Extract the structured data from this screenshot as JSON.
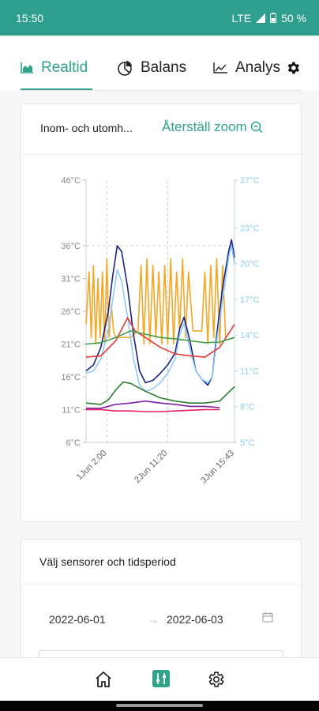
{
  "status_bar": {
    "time": "15:50",
    "network": "LTE",
    "battery": "50 %"
  },
  "tabs": [
    {
      "label": "Realtid",
      "icon": "area-chart-icon",
      "active": true
    },
    {
      "label": "Balans",
      "icon": "pie-chart-icon",
      "active": false
    },
    {
      "label": "Analys",
      "icon": "line-chart-icon",
      "active": false
    }
  ],
  "chart_card": {
    "title": "Inom- och utomh...",
    "reset_zoom_label": "Återställ zoom"
  },
  "chart_data": {
    "type": "line",
    "left_axis": {
      "ticks": [
        "46°C",
        "36°C",
        "31°C",
        "26°C",
        "21°C",
        "16°C",
        "11°C",
        "6°C"
      ],
      "values": [
        46,
        36,
        31,
        26,
        21,
        16,
        11,
        6
      ],
      "range": [
        6,
        46
      ],
      "color": "#888888"
    },
    "right_axis": {
      "ticks": [
        "27°C",
        "23°C",
        "20°C",
        "17°C",
        "14°C",
        "11°C",
        "8°C",
        "5°C"
      ],
      "values": [
        27,
        23,
        20,
        17,
        14,
        11,
        8,
        5
      ],
      "range": [
        5,
        27
      ],
      "color": "#8ecff2"
    },
    "x_ticks": [
      "1Jun 2:00",
      "2Jun 11:20",
      "3Jun 15:43"
    ],
    "x_range": [
      0,
      1
    ],
    "grid": "dashed",
    "series": [
      {
        "color": "#f5a623",
        "axis": "left",
        "x": [
          0,
          0.02,
          0.035,
          0.05,
          0.065,
          0.08,
          0.095,
          0.11,
          0.125,
          0.14,
          0.155,
          0.17,
          0.185,
          0.2,
          0.25,
          0.3,
          0.35,
          0.37,
          0.39,
          0.41,
          0.43,
          0.45,
          0.47,
          0.49,
          0.51,
          0.53,
          0.55,
          0.57,
          0.59,
          0.61,
          0.63,
          0.65,
          0.67,
          0.69,
          0.72,
          0.75,
          0.78,
          0.8,
          0.82,
          0.84,
          0.86,
          0.88,
          0.9,
          0.92,
          0.94
        ],
        "y": [
          24,
          32,
          22,
          33,
          21,
          31,
          22,
          32,
          21,
          34,
          22,
          27,
          23,
          22,
          22,
          22,
          23,
          33,
          21,
          34,
          21,
          33,
          22,
          32,
          21,
          33,
          21,
          34,
          21,
          32,
          23,
          34,
          22,
          32,
          23,
          23,
          23,
          32,
          21,
          33,
          22,
          34,
          21,
          33,
          22
        ]
      },
      {
        "color": "#1a237e",
        "axis": "right",
        "x": [
          0,
          0.05,
          0.1,
          0.15,
          0.18,
          0.21,
          0.24,
          0.28,
          0.32,
          0.36,
          0.4,
          0.45,
          0.5,
          0.55,
          0.6,
          0.63,
          0.66,
          0.7,
          0.74,
          0.78,
          0.82,
          0.85,
          0.88,
          0.92,
          0.96,
          0.98,
          1.0
        ],
        "y": [
          11,
          11.5,
          13,
          16,
          19,
          21.5,
          21,
          18,
          14,
          11,
          10,
          10.2,
          10.8,
          11.5,
          12.5,
          14.5,
          15.5,
          13.5,
          11,
          10.3,
          9.8,
          10.5,
          14,
          18,
          21,
          22,
          20.5
        ]
      },
      {
        "color": "#90caf9",
        "axis": "right",
        "x": [
          0,
          0.05,
          0.1,
          0.15,
          0.18,
          0.21,
          0.24,
          0.28,
          0.32,
          0.36,
          0.4,
          0.45,
          0.5,
          0.55,
          0.6,
          0.63,
          0.66,
          0.7,
          0.74,
          0.78,
          0.82,
          0.85,
          0.88,
          0.92,
          0.96,
          0.98,
          1.0
        ],
        "y": [
          10.8,
          11,
          12,
          14.5,
          17,
          19.5,
          18.5,
          15.5,
          12,
          9.8,
          9.3,
          9.5,
          10,
          10.8,
          12,
          14,
          15,
          12.8,
          11,
          10.3,
          10,
          10.5,
          13.5,
          17,
          20.5,
          21.5,
          20
        ]
      },
      {
        "color": "#e53935",
        "axis": "left",
        "x": [
          0,
          0.1,
          0.2,
          0.28,
          0.33,
          0.4,
          0.5,
          0.6,
          0.7,
          0.8,
          0.9,
          1.0
        ],
        "y": [
          19,
          19.2,
          21.5,
          25,
          23,
          22,
          20.5,
          19.5,
          19.2,
          19,
          20.5,
          24
        ]
      },
      {
        "color": "#43a047",
        "axis": "left",
        "x": [
          0,
          0.1,
          0.2,
          0.3,
          0.4,
          0.5,
          0.6,
          0.7,
          0.8,
          0.9,
          1.0
        ],
        "y": [
          21,
          21.2,
          22,
          23,
          22.5,
          22,
          21.8,
          21.5,
          21.2,
          21.3,
          22
        ]
      },
      {
        "color": "#2e7d32",
        "axis": "left",
        "x": [
          0,
          0.1,
          0.15,
          0.2,
          0.25,
          0.3,
          0.4,
          0.5,
          0.6,
          0.7,
          0.8,
          0.9,
          1.0
        ],
        "y": [
          12,
          11.8,
          12.5,
          14,
          15.2,
          15,
          13.8,
          12.8,
          12.3,
          12,
          12,
          12.3,
          14.5
        ]
      },
      {
        "color": "#7b1fa2",
        "axis": "left",
        "x": [
          0,
          0.1,
          0.2,
          0.3,
          0.4,
          0.5,
          0.6,
          0.7,
          0.8,
          0.9
        ],
        "y": [
          11.2,
          11.2,
          11.8,
          12,
          12.3,
          12,
          11.8,
          11.5,
          11.5,
          11.3
        ]
      },
      {
        "color": "#e91e63",
        "axis": "left",
        "x": [
          0,
          0.1,
          0.2,
          0.3,
          0.4,
          0.5,
          0.6,
          0.7,
          0.8,
          0.9
        ],
        "y": [
          11,
          11,
          10.8,
          10.8,
          10.7,
          10.7,
          10.8,
          10.9,
          11,
          11
        ]
      }
    ]
  },
  "sensor_card": {
    "title": "Välj sensorer och tidsperiod",
    "start_date": "2022-06-01",
    "arrow": "→",
    "end_date": "2022-06-03"
  },
  "bottom_nav": [
    {
      "name": "home",
      "active": false
    },
    {
      "name": "filters",
      "active": true
    },
    {
      "name": "settings",
      "active": false
    }
  ]
}
